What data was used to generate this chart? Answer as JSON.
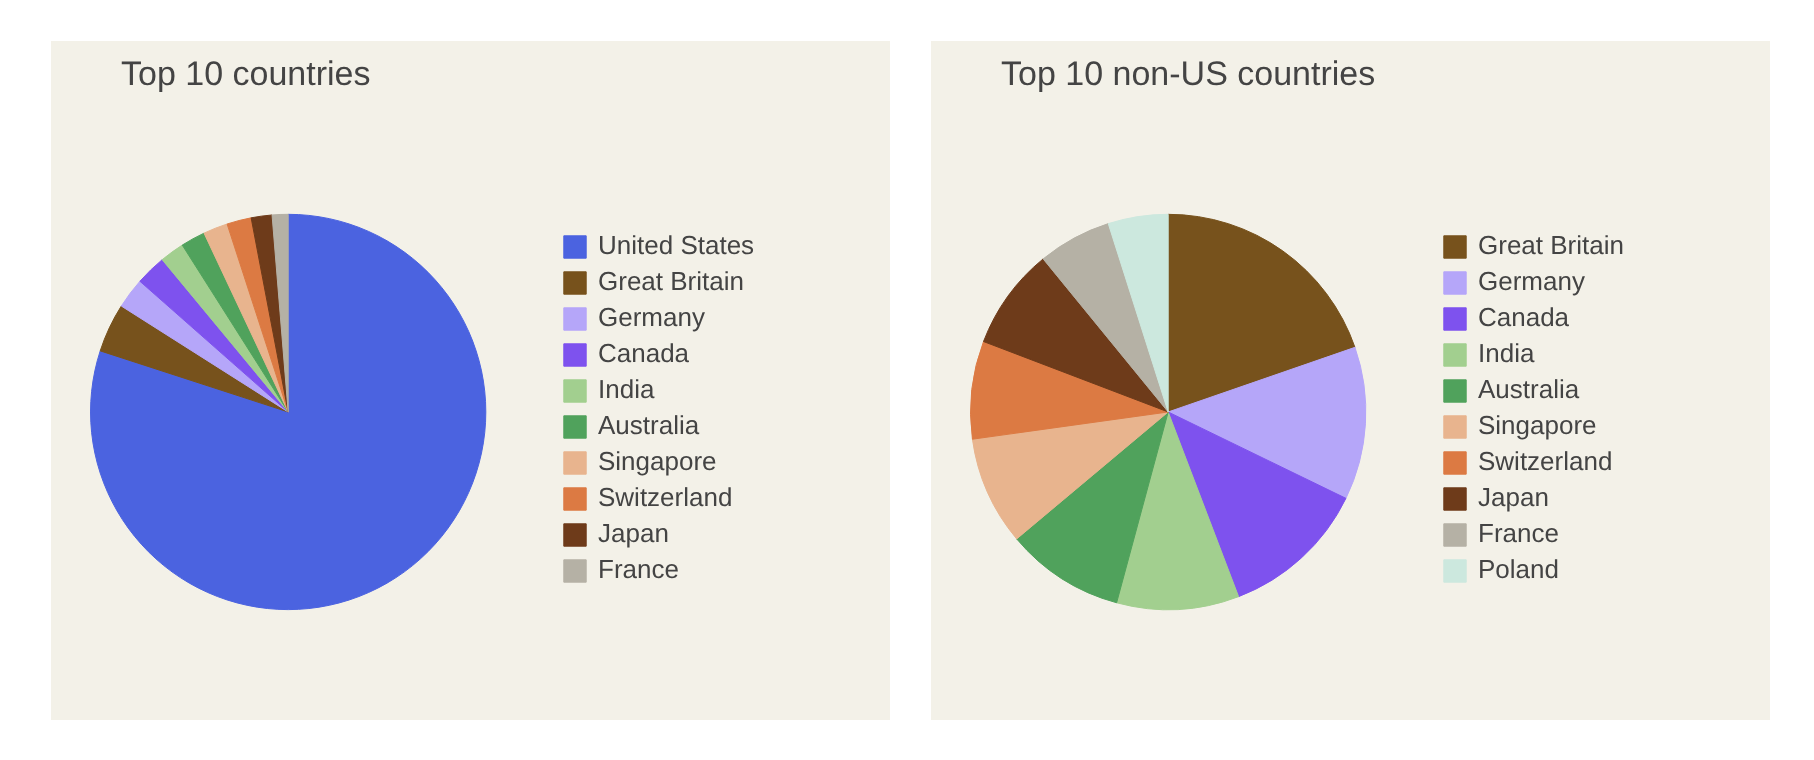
{
  "chart_data": [
    {
      "type": "pie",
      "title": "Top 10 countries",
      "legend": "right",
      "categories": [
        "United States",
        "Great Britain",
        "Germany",
        "Canada",
        "India",
        "Australia",
        "Singapore",
        "Switzerland",
        "Japan",
        "France"
      ],
      "values": [
        80,
        4,
        2.5,
        2.5,
        2,
        2,
        2,
        2,
        1.7,
        1.3
      ],
      "colors": [
        "#4b63e0",
        "#77521c",
        "#b5a6f9",
        "#7e52ee",
        "#a2cf8f",
        "#50a25c",
        "#e8b48e",
        "#dc7a43",
        "#6e3b1a",
        "#b5b1a5"
      ]
    },
    {
      "type": "pie",
      "title": "Top 10 non-US countries",
      "legend": "right",
      "categories": [
        "Great Britain",
        "Germany",
        "Canada",
        "India",
        "Australia",
        "Singapore",
        "Switzerland",
        "Japan",
        "France",
        "Poland"
      ],
      "values": [
        19.7,
        12.5,
        12,
        10,
        9.7,
        8.9,
        8,
        8.3,
        6,
        4.9
      ],
      "colors": [
        "#77521c",
        "#b5a6f9",
        "#7e52ee",
        "#a2cf8f",
        "#50a25c",
        "#e8b48e",
        "#dc7a43",
        "#6e3b1a",
        "#b5b1a5",
        "#cce8de"
      ]
    }
  ]
}
